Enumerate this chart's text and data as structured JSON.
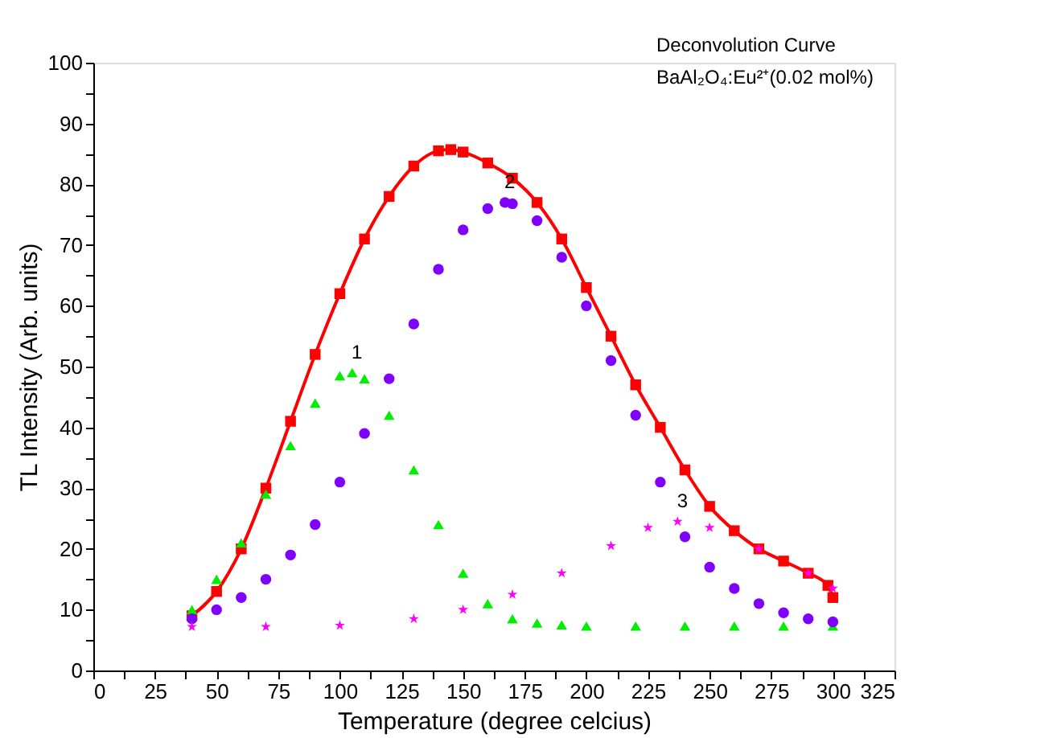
{
  "chart_data": {
    "type": "line",
    "xlabel": "Temperature (degree celcius)",
    "ylabel": "TL Intensity (Arb. units)",
    "xlim": [
      0,
      325
    ],
    "ylim": [
      0,
      100
    ],
    "xticks": [
      0,
      {
        "value": 12.5,
        "label": null
      },
      25,
      {
        "value": 37.5,
        "label": null
      },
      50,
      {
        "value": 62.5,
        "label": null
      },
      75,
      {
        "value": 87.5,
        "label": null
      },
      100,
      {
        "value": 112.5,
        "label": null
      },
      125,
      {
        "value": 137.5,
        "label": null
      },
      150,
      {
        "value": 162.5,
        "label": null
      },
      175,
      {
        "value": 187.5,
        "label": null
      },
      200,
      {
        "value": 212.5,
        "label": null
      },
      225,
      {
        "value": 237.5,
        "label": null
      },
      250,
      {
        "value": 262.5,
        "label": null
      },
      275,
      {
        "value": 287.5,
        "label": null
      },
      300,
      {
        "value": 312.5,
        "label": null
      },
      325
    ],
    "yticks": [
      0,
      {
        "value": 5,
        "label": null
      },
      10,
      {
        "value": 15,
        "label": null
      },
      20,
      {
        "value": 25,
        "label": null
      },
      30,
      {
        "value": 35,
        "label": null
      },
      40,
      {
        "value": 45,
        "label": null
      },
      50,
      {
        "value": 55,
        "label": null
      },
      60,
      {
        "value": 65,
        "label": null
      },
      70,
      {
        "value": 75,
        "label": null
      },
      80,
      {
        "value": 85,
        "label": null
      },
      90,
      {
        "value": 95,
        "label": null
      },
      100
    ],
    "grid": false,
    "series": [
      {
        "marker": "square",
        "color": "#ff0000",
        "x": [
          40,
          50,
          60,
          70,
          80,
          90,
          100,
          110,
          120,
          130,
          140,
          145,
          150,
          160,
          170,
          180,
          190,
          200,
          210,
          220,
          230,
          240,
          250,
          260,
          270,
          280,
          290,
          298,
          300
        ],
        "values": [
          9,
          13,
          20,
          30,
          41,
          52,
          62,
          71,
          78,
          83,
          85.5,
          85.7,
          85.3,
          83.5,
          81,
          77,
          71,
          63,
          55,
          47,
          40,
          33,
          27,
          23,
          20,
          18,
          16,
          14,
          12
        ]
      },
      {
        "type": "scatter",
        "marker": "triangle",
        "color": "#00ee00",
        "x": [
          40,
          50,
          60,
          70,
          80,
          90,
          100,
          105,
          110,
          120,
          130,
          140,
          150,
          160,
          170,
          180,
          190,
          200,
          220,
          240,
          260,
          280,
          300
        ],
        "values": [
          10,
          15,
          21,
          29,
          37,
          44,
          48.5,
          49,
          48,
          42,
          33,
          24,
          16,
          11,
          8.5,
          7.8,
          7.5,
          7.3,
          7.3,
          7.3,
          7.3,
          7.3,
          7.3
        ]
      },
      {
        "type": "scatter",
        "marker": "circle",
        "color": "#8000ff",
        "x": [
          40,
          50,
          60,
          70,
          80,
          90,
          100,
          110,
          120,
          130,
          140,
          150,
          160,
          167,
          170,
          180,
          190,
          200,
          210,
          220,
          230,
          240,
          250,
          260,
          270,
          280,
          290,
          300
        ],
        "values": [
          8.5,
          10,
          12,
          15,
          19,
          24,
          31,
          39,
          48,
          57,
          66,
          72.5,
          76,
          77,
          76.8,
          74,
          68,
          60,
          51,
          42,
          31,
          22,
          17,
          13.5,
          11,
          9.5,
          8.5,
          8
        ]
      },
      {
        "type": "scatter",
        "marker": "star",
        "color": "#ff00ff",
        "x": [
          40,
          70,
          100,
          130,
          150,
          170,
          190,
          210,
          225,
          237,
          250,
          270,
          290,
          300
        ],
        "values": [
          7.2,
          7.2,
          7.4,
          8.5,
          10,
          12.5,
          16,
          20.5,
          23.5,
          24.5,
          23.5,
          20,
          16,
          13.5
        ]
      }
    ],
    "annotations": [
      {
        "text": "1",
        "x": 105,
        "y": 49
      },
      {
        "text": "2",
        "x": 167,
        "y": 77
      },
      {
        "text": "3",
        "x": 237,
        "y": 24.5
      },
      "Deconvolution Curve",
      "BaAl₂O₄:Eu²⁺(0.02 mol%)"
    ]
  }
}
